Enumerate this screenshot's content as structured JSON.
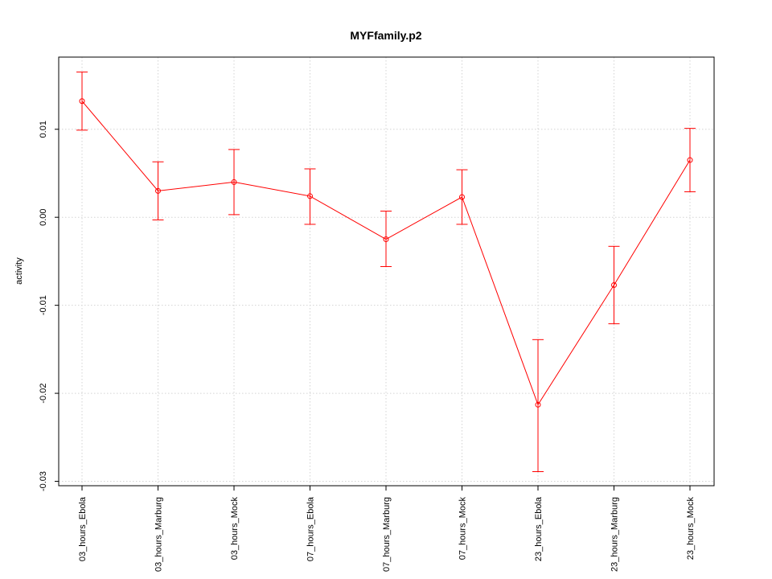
{
  "chart_data": {
    "type": "line",
    "title": "MYFfamily.p2",
    "xlabel": "",
    "ylabel": "activity",
    "categories": [
      "03_hours_Ebola",
      "03_hours_Marburg",
      "03_hours_Mock",
      "07_hours_Ebola",
      "07_hours_Marburg",
      "07_hours_Mock",
      "23_hours_Ebola",
      "23_hours_Marburg",
      "23_hours_Mock"
    ],
    "series": [
      {
        "values": [
          0.0132,
          0.003,
          0.004,
          0.0024,
          -0.0025,
          0.0023,
          -0.0213,
          -0.0077,
          0.0065
        ],
        "error_low": [
          0.0099,
          -0.0003,
          0.0003,
          -0.0008,
          -0.0056,
          -0.0008,
          -0.0289,
          -0.0121,
          0.0029
        ],
        "error_high": [
          0.0165,
          0.0063,
          0.0077,
          0.0055,
          0.0007,
          0.0054,
          -0.0139,
          -0.0033,
          0.0101
        ],
        "color": "#ff0000"
      }
    ],
    "yticks": [
      -0.03,
      -0.02,
      -0.01,
      0.0,
      0.01
    ],
    "ytick_labels": [
      "-0.03",
      "-0.02",
      "-0.01",
      "0.00",
      "0.01"
    ],
    "ylim": [
      -0.0305,
      0.0182
    ],
    "grid": true,
    "grid_color": "#d3d3d3",
    "legend": "none"
  }
}
